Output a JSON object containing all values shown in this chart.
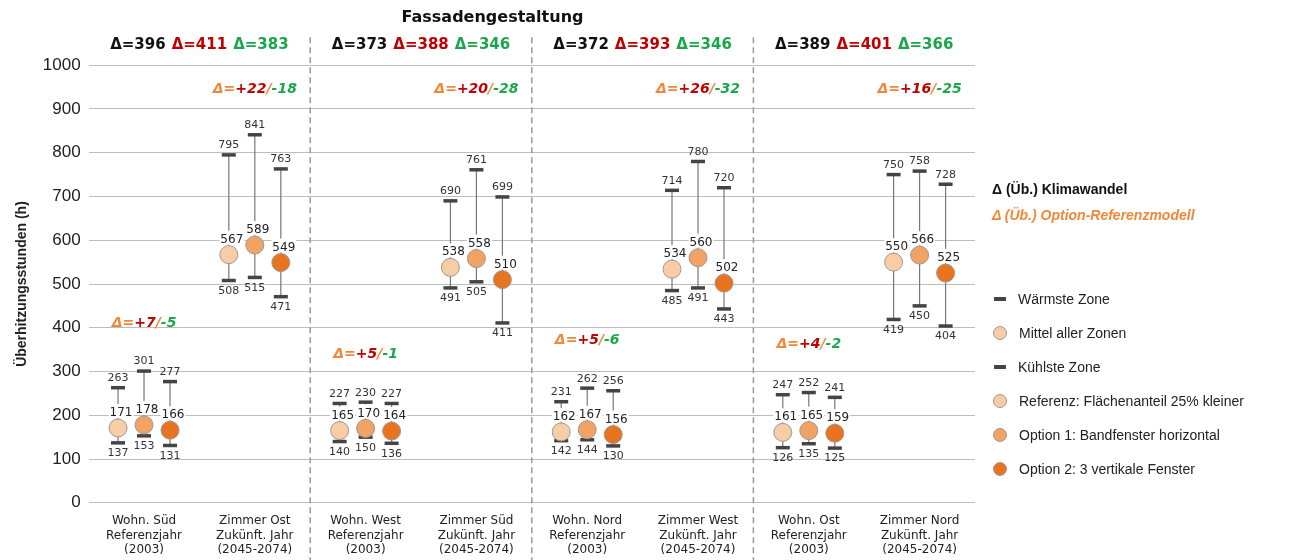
{
  "chart_data": {
    "type": "scatter",
    "title": "Fassadengestaltung",
    "ylabel": "Überhitzungsstunden (h)",
    "categories": [
      "Wohn. Süd\nReferenzjahr\n(2003)",
      "Zimmer Ost\nZukünft. Jahr\n(2045-2074)",
      "Wohn. West\nReferenzjahr\n(2003)",
      "Zimmer Süd\nZukünft. Jahr\n(2045-2074)",
      "Wohn. Nord\nReferenzjahr\n(2003)",
      "Zimmer West\nZukünft. Jahr\n(2045-2074)",
      "Wohn. Ost\nReferenzjahr\n(2003)",
      "Zimmer Nord\nZukünft. Jahr\n(2045-2074)"
    ],
    "series": [
      {
        "name": "Referenz: Flächenanteil 25% kleiner",
        "color": "#f8cca4",
        "values": [
          171,
          567,
          165,
          538,
          162,
          534,
          161,
          550
        ],
        "errors": [
          [
            137,
            263
          ],
          [
            508,
            795
          ],
          [
            140,
            227
          ],
          [
            491,
            690
          ],
          [
            142,
            231
          ],
          [
            485,
            714
          ],
          [
            126,
            247
          ],
          [
            419,
            750
          ]
        ]
      },
      {
        "name": "Option 1: Bandfenster horizontal",
        "color": "#f2a263",
        "values": [
          178,
          589,
          170,
          558,
          167,
          560,
          165,
          566
        ],
        "errors": [
          [
            153,
            301
          ],
          [
            515,
            841
          ],
          [
            150,
            230
          ],
          [
            505,
            761
          ],
          [
            144,
            262
          ],
          [
            491,
            780
          ],
          [
            135,
            252
          ],
          [
            450,
            758
          ]
        ]
      },
      {
        "name": "Option 2: 3 vertikale Fenster",
        "color": "#e8741f",
        "values": [
          166,
          549,
          164,
          510,
          156,
          502,
          159,
          525
        ],
        "errors": [
          [
            131,
            277
          ],
          [
            471,
            763
          ],
          [
            136,
            227
          ],
          [
            411,
            699
          ],
          [
            130,
            256
          ],
          [
            443,
            720
          ],
          [
            125,
            241
          ],
          [
            404,
            728
          ]
        ]
      }
    ],
    "annotations": [
      "Δ=396 Δ=411 Δ=383",
      "Δ=373 Δ=388 Δ=346",
      "Δ=372 Δ=393 Δ=346",
      "Δ=389 Δ=401 Δ=366",
      "Δ=+7/-5",
      "Δ=+22/-18",
      "Δ=+5/-1",
      "Δ=+20/-28",
      "Δ=+5/-6",
      "Δ=+26/-32",
      "Δ=+4/-2",
      "Δ=+16/-25",
      "Δ (Üb.) Klimawandel",
      "Δ (Üb.) Option-Referenzmodell",
      "Wärmste Zone",
      "Mittel aller Zonen",
      "Kühlste Zone",
      "137",
      "263",
      "153",
      "301",
      "131",
      "277",
      "508",
      "795",
      "515",
      "841",
      "471",
      "763",
      "140",
      "227",
      "150",
      "230",
      "136",
      "227",
      "491",
      "690",
      "505",
      "761",
      "411",
      "699",
      "142",
      "231",
      "144",
      "262",
      "130",
      "256",
      "485",
      "714",
      "491",
      "780",
      "443",
      "720",
      "126",
      "247",
      "135",
      "252",
      "125",
      "241",
      "419",
      "750",
      "450",
      "758",
      "404",
      "728"
    ],
    "ylim": [
      0,
      1000
    ],
    "yticks": [
      0,
      100,
      200,
      300,
      400,
      500,
      600,
      700,
      800,
      900,
      1000
    ],
    "grid": "y",
    "legend": "right",
    "marker": "circle",
    "data_labels": true
  }
}
